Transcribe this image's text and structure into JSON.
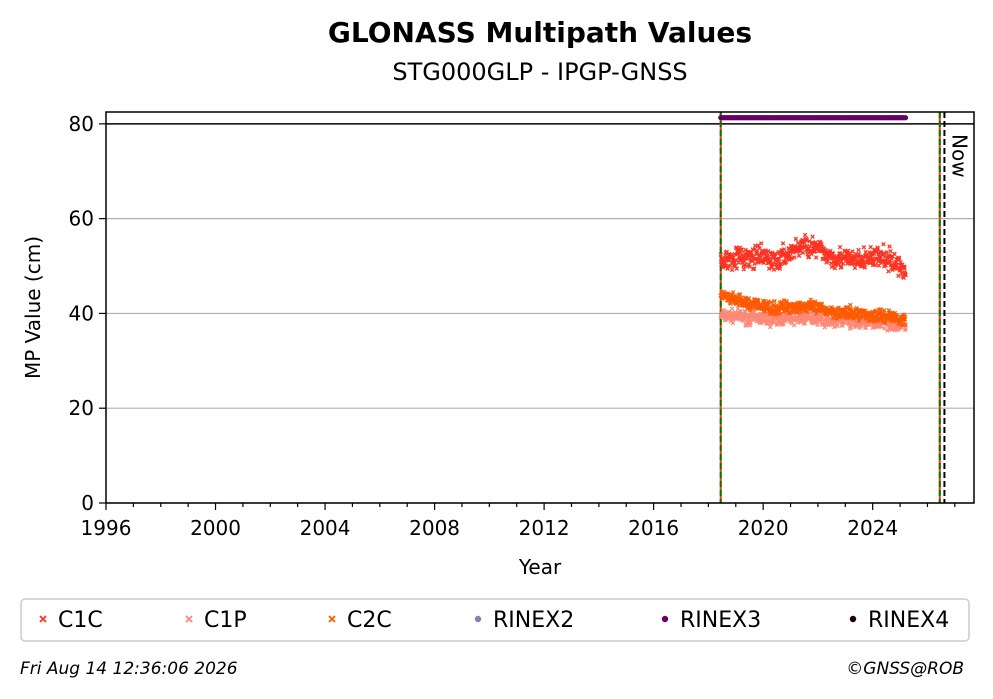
{
  "chart_data": {
    "type": "scatter",
    "title": "GLONASS Multipath Values",
    "subtitle": "STG000GLP - IPGP-GNSS",
    "xlabel": "Year",
    "ylabel": "MP Value (cm)",
    "xlim": [
      1996,
      2027.7
    ],
    "ylim": [
      0,
      82.5
    ],
    "x_ticks": [
      1996,
      2000,
      2004,
      2008,
      2012,
      2016,
      2020,
      2024
    ],
    "y_ticks": [
      0,
      20,
      40,
      60,
      80
    ],
    "grid": "horizontal",
    "series": [
      {
        "name": "C1C",
        "marker": "x",
        "color": "#ff3322",
        "x": [
          2018.45,
          2019.0,
          2019.5,
          2020.0,
          2020.5,
          2021.0,
          2021.5,
          2022.0,
          2022.5,
          2023.0,
          2023.5,
          2024.0,
          2024.5,
          2025.0,
          2025.2
        ],
        "y": [
          51,
          52,
          51.5,
          52,
          51,
          53,
          54.5,
          53.5,
          52,
          51.5,
          51,
          52,
          51.5,
          50,
          49
        ]
      },
      {
        "name": "C1P",
        "marker": "x",
        "color": "#ff8877",
        "x": [
          2018.45,
          2019.0,
          2019.5,
          2020.0,
          2020.5,
          2021.0,
          2021.5,
          2022.0,
          2022.5,
          2023.0,
          2023.5,
          2024.0,
          2024.5,
          2025.0,
          2025.2
        ],
        "y": [
          39.5,
          39.5,
          39,
          39,
          38.5,
          39,
          39,
          39,
          38.5,
          38.5,
          38,
          38,
          38,
          37.5,
          37.5
        ]
      },
      {
        "name": "C2C",
        "marker": "x",
        "color": "#ff5a00",
        "x": [
          2018.45,
          2018.8,
          2019.5,
          2020.0,
          2020.5,
          2021.0,
          2021.5,
          2022.0,
          2022.5,
          2023.0,
          2023.5,
          2024.0,
          2024.5,
          2025.0,
          2025.2
        ],
        "y": [
          44,
          43,
          42,
          41.5,
          41,
          41.5,
          41.5,
          41,
          40.5,
          40,
          40,
          39.5,
          39.5,
          39,
          38.5
        ]
      },
      {
        "name": "RINEX2",
        "marker": "o",
        "color": "#7f7fbf",
        "x": [],
        "y": []
      },
      {
        "name": "RINEX3",
        "marker": "o",
        "color": "#660066",
        "x": [
          2018.45,
          2025.2
        ],
        "y": [
          81.3,
          81.3
        ]
      },
      {
        "name": "RINEX4",
        "marker": "o",
        "color": "#1a0010",
        "x": [],
        "y": []
      }
    ],
    "vertical_lines": [
      {
        "x": 2018.45,
        "color": "#ff3300",
        "style": "solid"
      },
      {
        "x": 2018.45,
        "color": "#007700",
        "style": "dashed"
      },
      {
        "x": 2026.45,
        "color": "#ff3300",
        "style": "solid"
      },
      {
        "x": 2026.45,
        "color": "#007700",
        "style": "dashed"
      },
      {
        "x": 2026.62,
        "color": "#000000",
        "style": "dashed"
      }
    ],
    "now_label": "Now",
    "legend": {
      "placement": "bottom",
      "entries": [
        "C1C",
        "C1P",
        "C2C",
        "RINEX2",
        "RINEX3",
        "RINEX4"
      ]
    }
  },
  "footer": {
    "timestamp": "Fri Aug 14 12:36:06 2026",
    "credit": "©GNSS@ROB"
  }
}
